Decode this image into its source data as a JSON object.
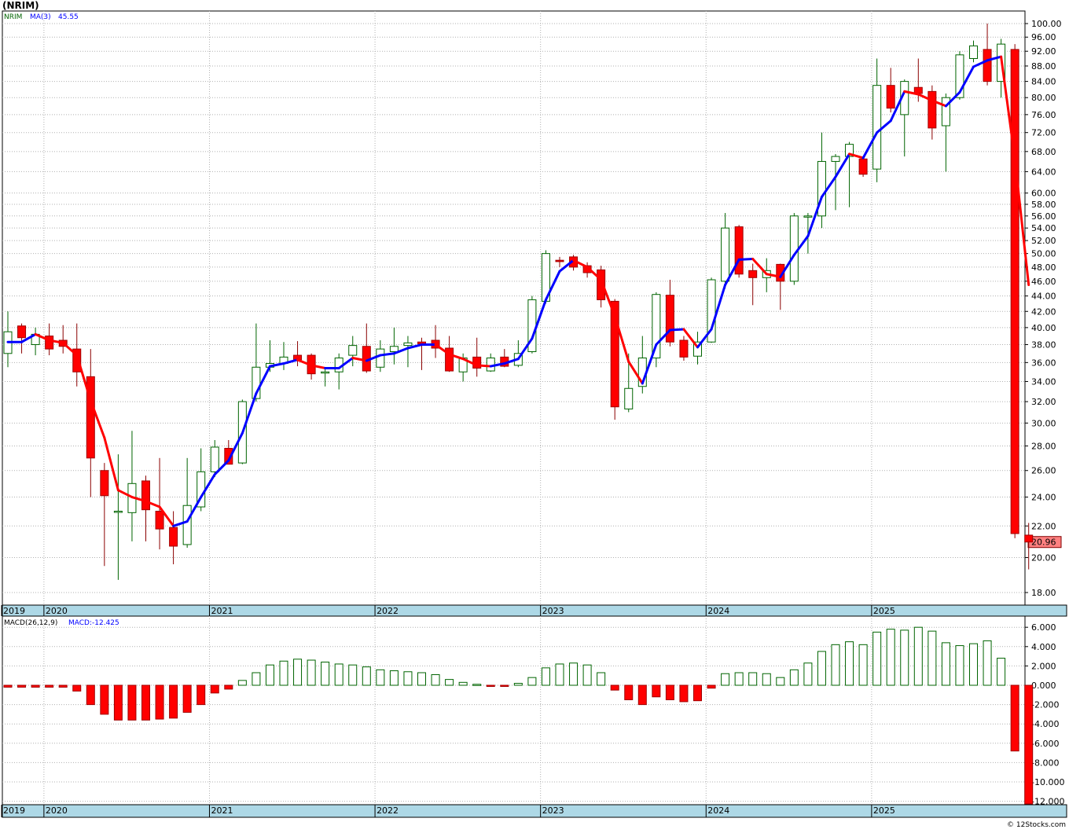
{
  "title": "(NRIM)",
  "watermark": "© 12Stocks.com",
  "colors": {
    "up_outline": "#006400",
    "down_fill": "#ff0000",
    "ma_up": "#0000ff",
    "ma_down": "#ff0000",
    "axis_band": "#add8e6",
    "last_price_box": "#ff8080"
  },
  "price_panel": {
    "legend_symbol": "NRIM",
    "legend_ma": "MA(3)",
    "legend_ma_value": "45.55",
    "last_price": "20.96",
    "y_scale": "log",
    "y_ticks": [
      "100.00",
      "96.00",
      "92.00",
      "88.00",
      "84.00",
      "80.00",
      "76.00",
      "72.00",
      "68.00",
      "64.00",
      "60.00",
      "58.00",
      "56.00",
      "54.00",
      "52.00",
      "50.00",
      "48.00",
      "46.00",
      "44.00",
      "42.00",
      "40.00",
      "38.00",
      "36.00",
      "34.00",
      "32.00",
      "30.00",
      "28.00",
      "26.00",
      "24.00",
      "22.00",
      "20.00",
      "18.00"
    ]
  },
  "macd_panel": {
    "legend_label": "MACD(26,12,9)",
    "legend_value": "MACD:-12.425",
    "y_ticks": [
      "6.000",
      "4.000",
      "2.000",
      "0.000",
      "-2.000",
      "-4.000",
      "-6.000",
      "-8.000",
      "-10.000",
      "-12.000"
    ]
  },
  "x_labels": [
    "2019",
    "2020",
    "2021",
    "2022",
    "2023",
    "2024",
    "2025"
  ],
  "chart_data": [
    {
      "type": "candlestick",
      "title": "(NRIM)",
      "period": "monthly",
      "y_scale": "log",
      "ylim": [
        17,
        101
      ],
      "x_labels": [
        "2019",
        "2020",
        "2021",
        "2022",
        "2023",
        "2024",
        "2025"
      ],
      "candles": [
        [
          37.0,
          42.0,
          35.5,
          39.5
        ],
        [
          40.2,
          40.5,
          37.0,
          38.8
        ],
        [
          38.0,
          40.0,
          36.8,
          39.2
        ],
        [
          39.0,
          40.5,
          36.8,
          37.5
        ],
        [
          38.5,
          40.3,
          37.0,
          37.8
        ],
        [
          37.5,
          40.5,
          33.5,
          35.0
        ],
        [
          34.5,
          37.5,
          24.0,
          27.0
        ],
        [
          26.0,
          26.6,
          19.5,
          24.1
        ],
        [
          23.0,
          27.3,
          18.7,
          23.0
        ],
        [
          22.9,
          29.3,
          21.0,
          25.0
        ],
        [
          25.2,
          25.6,
          21.0,
          23.1
        ],
        [
          23.0,
          27.0,
          20.5,
          21.8
        ],
        [
          21.9,
          23.0,
          19.6,
          20.7
        ],
        [
          20.8,
          27.0,
          20.6,
          23.4
        ],
        [
          23.3,
          27.8,
          23.0,
          25.9
        ],
        [
          25.9,
          28.5,
          25.5,
          27.9
        ],
        [
          27.8,
          28.5,
          26.5,
          26.5
        ],
        [
          26.6,
          32.2,
          26.5,
          32.0
        ],
        [
          32.3,
          40.5,
          32.0,
          35.5
        ],
        [
          35.5,
          38.5,
          35.0,
          35.9
        ],
        [
          35.9,
          38.3,
          35.2,
          36.6
        ],
        [
          36.8,
          38.4,
          35.6,
          36.3
        ],
        [
          36.8,
          37.0,
          34.2,
          34.8
        ],
        [
          35.0,
          35.5,
          33.5,
          35.0
        ],
        [
          35.0,
          37.0,
          33.2,
          36.5
        ],
        [
          36.8,
          39.0,
          35.6,
          37.9
        ],
        [
          37.8,
          40.5,
          34.9,
          35.1
        ],
        [
          35.5,
          38.5,
          35.0,
          37.5
        ],
        [
          37.2,
          40.0,
          35.8,
          37.8
        ],
        [
          37.9,
          39.0,
          35.5,
          38.2
        ],
        [
          38.3,
          38.8,
          35.2,
          38.1
        ],
        [
          38.5,
          40.3,
          36.5,
          37.6
        ],
        [
          37.6,
          39.0,
          35.0,
          35.1
        ],
        [
          35.0,
          37.0,
          34.0,
          36.5
        ],
        [
          36.6,
          38.8,
          34.5,
          35.4
        ],
        [
          35.1,
          37.0,
          35.0,
          36.5
        ],
        [
          36.6,
          37.5,
          35.5,
          35.6
        ],
        [
          35.7,
          38.5,
          35.5,
          37.0
        ],
        [
          37.2,
          44.0,
          37.0,
          43.5
        ],
        [
          43.3,
          50.5,
          43.0,
          50.0
        ],
        [
          49.0,
          49.5,
          48.0,
          48.8
        ],
        [
          49.5,
          49.8,
          47.5,
          48.0
        ],
        [
          48.2,
          48.7,
          46.5,
          47.2
        ],
        [
          47.6,
          48.2,
          42.5,
          43.5
        ],
        [
          43.3,
          43.6,
          30.3,
          31.5
        ],
        [
          31.3,
          37.0,
          31.0,
          33.3
        ],
        [
          33.5,
          39.0,
          32.8,
          36.5
        ],
        [
          36.5,
          44.5,
          35.5,
          44.2
        ],
        [
          44.1,
          46.2,
          37.8,
          38.3
        ],
        [
          38.5,
          39.0,
          36.2,
          36.6
        ],
        [
          36.7,
          39.5,
          35.8,
          38.3
        ],
        [
          38.3,
          46.5,
          38.2,
          46.2
        ],
        [
          46.0,
          56.5,
          45.0,
          54.0
        ],
        [
          54.2,
          54.5,
          46.5,
          47.0
        ],
        [
          47.5,
          48.5,
          42.8,
          46.5
        ],
        [
          46.5,
          49.3,
          44.5,
          47.5
        ],
        [
          48.4,
          48.5,
          42.2,
          46.0
        ],
        [
          46.0,
          56.5,
          45.5,
          56.0
        ],
        [
          56.0,
          56.5,
          50.0,
          56.0
        ],
        [
          56.0,
          72.0,
          54.0,
          66.0
        ],
        [
          66.0,
          67.5,
          57.0,
          67.0
        ],
        [
          67.0,
          70.0,
          57.5,
          69.5
        ],
        [
          66.5,
          66.8,
          63.0,
          63.5
        ],
        [
          64.5,
          90.0,
          62.0,
          83.0
        ],
        [
          83.0,
          87.5,
          76.5,
          77.5
        ],
        [
          76.0,
          84.5,
          67.0,
          84.0
        ],
        [
          82.5,
          90.0,
          79.0,
          81.0
        ],
        [
          81.5,
          83.0,
          70.5,
          73.0
        ],
        [
          73.5,
          81.0,
          64.0,
          80.0
        ],
        [
          80.0,
          92.0,
          79.5,
          91.0
        ],
        [
          90.0,
          95.0,
          89.0,
          93.5
        ],
        [
          92.5,
          100.0,
          83.0,
          84.0
        ],
        [
          84.0,
          95.5,
          80.0,
          94.0
        ],
        [
          92.5,
          94.0,
          21.2,
          21.5
        ],
        [
          21.4,
          22.2,
          19.3,
          20.96
        ]
      ],
      "ma3": [
        38.3,
        38.3,
        39.2,
        38.5,
        38.2,
        36.8,
        32.1,
        28.7,
        24.5,
        24.0,
        23.7,
        23.3,
        22.0,
        22.3,
        24.0,
        25.7,
        26.8,
        29.1,
        32.8,
        35.6,
        35.9,
        36.3,
        35.7,
        35.4,
        35.4,
        36.5,
        36.2,
        36.8,
        37.0,
        37.6,
        38.0,
        38.0,
        36.9,
        36.4,
        35.7,
        35.6,
        35.9,
        36.4,
        38.7,
        43.5,
        47.4,
        49.0,
        48.0,
        46.2,
        41.4,
        36.1,
        33.8,
        38.0,
        39.7,
        39.8,
        37.7,
        39.8,
        45.5,
        49.1,
        49.2,
        47.0,
        46.6,
        49.8,
        52.7,
        59.3,
        63.0,
        67.5,
        66.7,
        72.0,
        74.6,
        81.5,
        80.8,
        79.3,
        78.0,
        81.3,
        87.8,
        89.5,
        90.5,
        66.5,
        45.5
      ],
      "macd_histogram": [
        -0.2,
        -0.2,
        -0.2,
        -0.2,
        -0.2,
        -0.6,
        -2.0,
        -3.0,
        -3.6,
        -3.6,
        -3.6,
        -3.5,
        -3.4,
        -2.8,
        -2.0,
        -0.8,
        -0.4,
        0.5,
        1.3,
        2.1,
        2.5,
        2.7,
        2.6,
        2.4,
        2.2,
        2.1,
        1.9,
        1.6,
        1.5,
        1.4,
        1.3,
        1.1,
        0.6,
        0.3,
        0.1,
        -0.1,
        -0.1,
        0.2,
        0.8,
        1.8,
        2.2,
        2.3,
        2.1,
        1.3,
        -0.5,
        -1.5,
        -2.0,
        -1.2,
        -1.5,
        -1.7,
        -1.6,
        -0.3,
        1.2,
        1.3,
        1.3,
        1.2,
        0.8,
        1.6,
        2.3,
        3.5,
        4.2,
        4.5,
        4.2,
        5.5,
        5.8,
        5.7,
        6.0,
        5.6,
        4.4,
        4.1,
        4.3,
        4.6,
        2.8,
        -6.8,
        -12.425
      ]
    }
  ]
}
